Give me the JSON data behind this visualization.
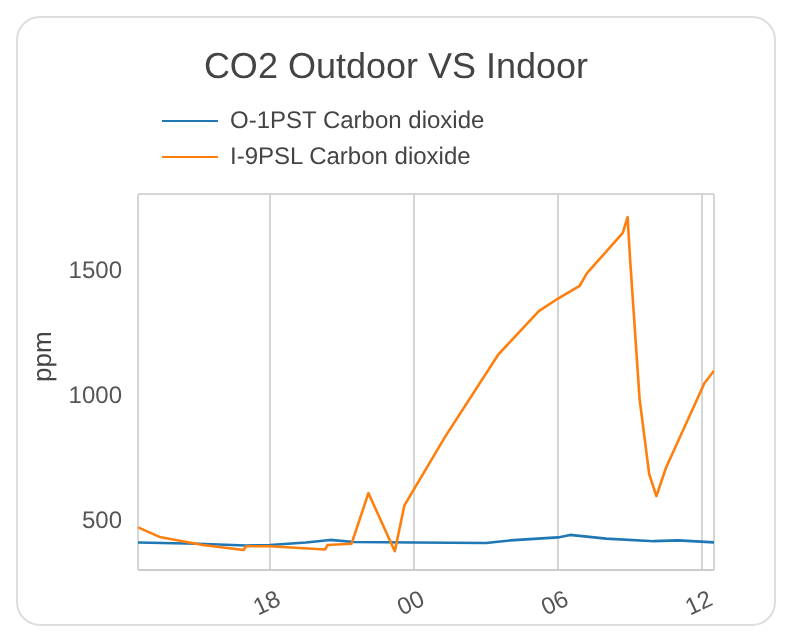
{
  "chart_data": {
    "type": "line",
    "title": "CO2 Outdoor VS Indoor",
    "ylabel": "ppm",
    "xlim": [
      "--01-01T12:30",
      "--01-02T12:30"
    ],
    "xticks": [
      {
        "value": "--01-01T18:00",
        "label": "18"
      },
      {
        "value": "--01-02T00:00",
        "label": "00"
      },
      {
        "value": "--01-02T06:00",
        "label": "06"
      },
      {
        "value": "--01-02T12:00",
        "label": "12"
      }
    ],
    "ylim": [
      300,
      1800
    ],
    "yticks": [
      500,
      1000,
      1500
    ],
    "grid": true,
    "legend": "top",
    "marker": "none",
    "line_style": "solid",
    "series": [
      {
        "name": "O-1PST Carbon dioxide",
        "color": "#1f77b4",
        "x": [
          "--01-01T12:30",
          "--01-01T15:00",
          "--01-01T17:00",
          "--01-01T18:00",
          "--01-01T19:30",
          "--01-01T20:30",
          "--01-01T21:30",
          "--01-02T00:00",
          "--01-02T03:00",
          "--01-02T04:00",
          "--01-02T06:00",
          "--01-02T06:30",
          "--01-02T08:00",
          "--01-02T10:00",
          "--01-02T11:00",
          "--01-02T12:30"
        ],
        "values": [
          410,
          405,
          398,
          400,
          410,
          420,
          412,
          410,
          408,
          418,
          430,
          440,
          425,
          415,
          418,
          410
        ]
      },
      {
        "name": "I-9PSL Carbon dioxide",
        "color": "#ff7f0e",
        "x": [
          "--01-01T12:30",
          "--01-01T13:24",
          "--01-01T15:12",
          "--01-01T16:54",
          "--01-01T17:00",
          "--01-01T18:00",
          "--01-01T20:18",
          "--01-01T20:24",
          "--01-01T21:24",
          "--01-01T22:06",
          "--01-01T23:12",
          "--01-01T23:36",
          "--01-02T01:18",
          "--01-02T03:30",
          "--01-02T05:12",
          "--01-02T06:00",
          "--01-02T06:54",
          "--01-02T07:12",
          "--01-02T08:42",
          "--01-02T08:54",
          "--01-02T09:00",
          "--01-02T09:24",
          "--01-02T09:48",
          "--01-02T10:06",
          "--01-02T10:30",
          "--01-02T12:06",
          "--01-02T12:30"
        ],
        "values": [
          470,
          432,
          400,
          380,
          395,
          395,
          382,
          400,
          405,
          607,
          375,
          558,
          832,
          1158,
          1333,
          1383,
          1433,
          1483,
          1645,
          1708,
          1545,
          982,
          682,
          595,
          708,
          1045,
          1095
        ]
      }
    ]
  }
}
